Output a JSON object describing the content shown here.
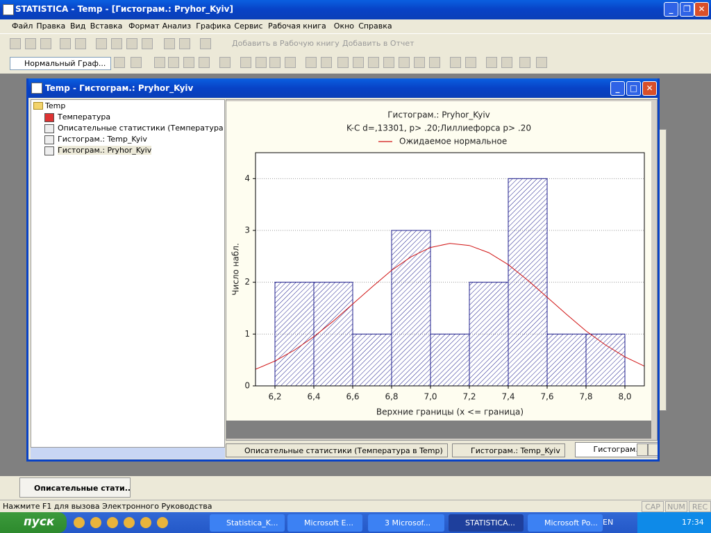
{
  "window": {
    "title": "STATISTICA - Temp - [Гистограм.: Pryhor_Kyiv]"
  },
  "menu": [
    "Файл",
    "Правка",
    "Вид",
    "Вставка",
    "Формат",
    "Анализ",
    "Графика",
    "Сервис",
    "Рабочая книга",
    "Окно",
    "Справка"
  ],
  "toolbar": {
    "add_workbook": "Добавить в Рабочую книгу",
    "add_report": "Добавить в Отчет",
    "graph_style": "Нормальный Граф..."
  },
  "doc_window": {
    "title": "Temp - Гистограм.: Pryhor_Kyiv"
  },
  "tree": {
    "root": "Temp",
    "items": [
      "Температура",
      "Описательные статистики (Температура в Tem",
      "Гистограм.: Temp_Kyiv",
      "Гистограм.: Pryhor_Kyiv"
    ]
  },
  "tabs": [
    "Описательные статистики (Температура в Temp)",
    "Гистограм.: Temp_Kyiv",
    "Гистограм.: Pryhor_Kyiv"
  ],
  "minimized": "Описательные стати...",
  "status": {
    "text": "Нажмите F1 для вызова Электронного Руководства",
    "indicators": [
      "CAP",
      "NUM",
      "REC"
    ]
  },
  "taskbar": {
    "start": "пуск",
    "items": [
      "Statistica_K...",
      "Microsoft E...",
      "3 Microsof...",
      "STATISTICA...",
      "Microsoft Po..."
    ],
    "lang": "EN",
    "clock": "17:34"
  },
  "chart_data": {
    "type": "histogram",
    "title": "Гистограм.: Pryhor_Kyiv",
    "subtitle": "K-C d=,13301, p> .20;Лиллиефорса p> .20",
    "x_label": "Верхние границы (x <= граница)",
    "y_label": "Число набл.",
    "bins": [
      6.2,
      6.4,
      6.6,
      6.8,
      7.0,
      7.2,
      7.4,
      7.6,
      7.8,
      8.0
    ],
    "values": [
      2,
      2,
      1,
      3,
      1,
      2,
      4,
      1,
      1
    ],
    "color": "#1c1c8c",
    "curve": {
      "name": "Ожидаемое нормальное",
      "color": "#d01010",
      "x": [
        6.1,
        6.2,
        6.3,
        6.4,
        6.5,
        6.6,
        6.7,
        6.8,
        6.9,
        7.0,
        7.1,
        7.2,
        7.3,
        7.4,
        7.5,
        7.6,
        7.7,
        7.8,
        7.9,
        8.0,
        8.1
      ],
      "values": [
        0.32,
        0.48,
        0.69,
        0.95,
        1.25,
        1.58,
        1.91,
        2.23,
        2.49,
        2.67,
        2.75,
        2.71,
        2.57,
        2.34,
        2.04,
        1.71,
        1.38,
        1.06,
        0.79,
        0.56,
        0.38
      ]
    },
    "xlim": [
      6.1,
      8.1
    ],
    "ylim": [
      0,
      4.5
    ],
    "xticks": [
      {
        "value": 6.2,
        "label": "6,2"
      },
      {
        "value": 6.4,
        "label": "6,4"
      },
      {
        "value": 6.6,
        "label": "6,6"
      },
      {
        "value": 6.8,
        "label": "6,8"
      },
      {
        "value": 7.0,
        "label": "7,0"
      },
      {
        "value": 7.2,
        "label": "7,2"
      },
      {
        "value": 7.4,
        "label": "7,4"
      },
      {
        "value": 7.6,
        "label": "7,6"
      },
      {
        "value": 7.8,
        "label": "7,8"
      },
      {
        "value": 8.0,
        "label": "8,0"
      }
    ],
    "yticks": [
      0,
      1,
      2,
      3,
      4
    ],
    "grid": true
  }
}
